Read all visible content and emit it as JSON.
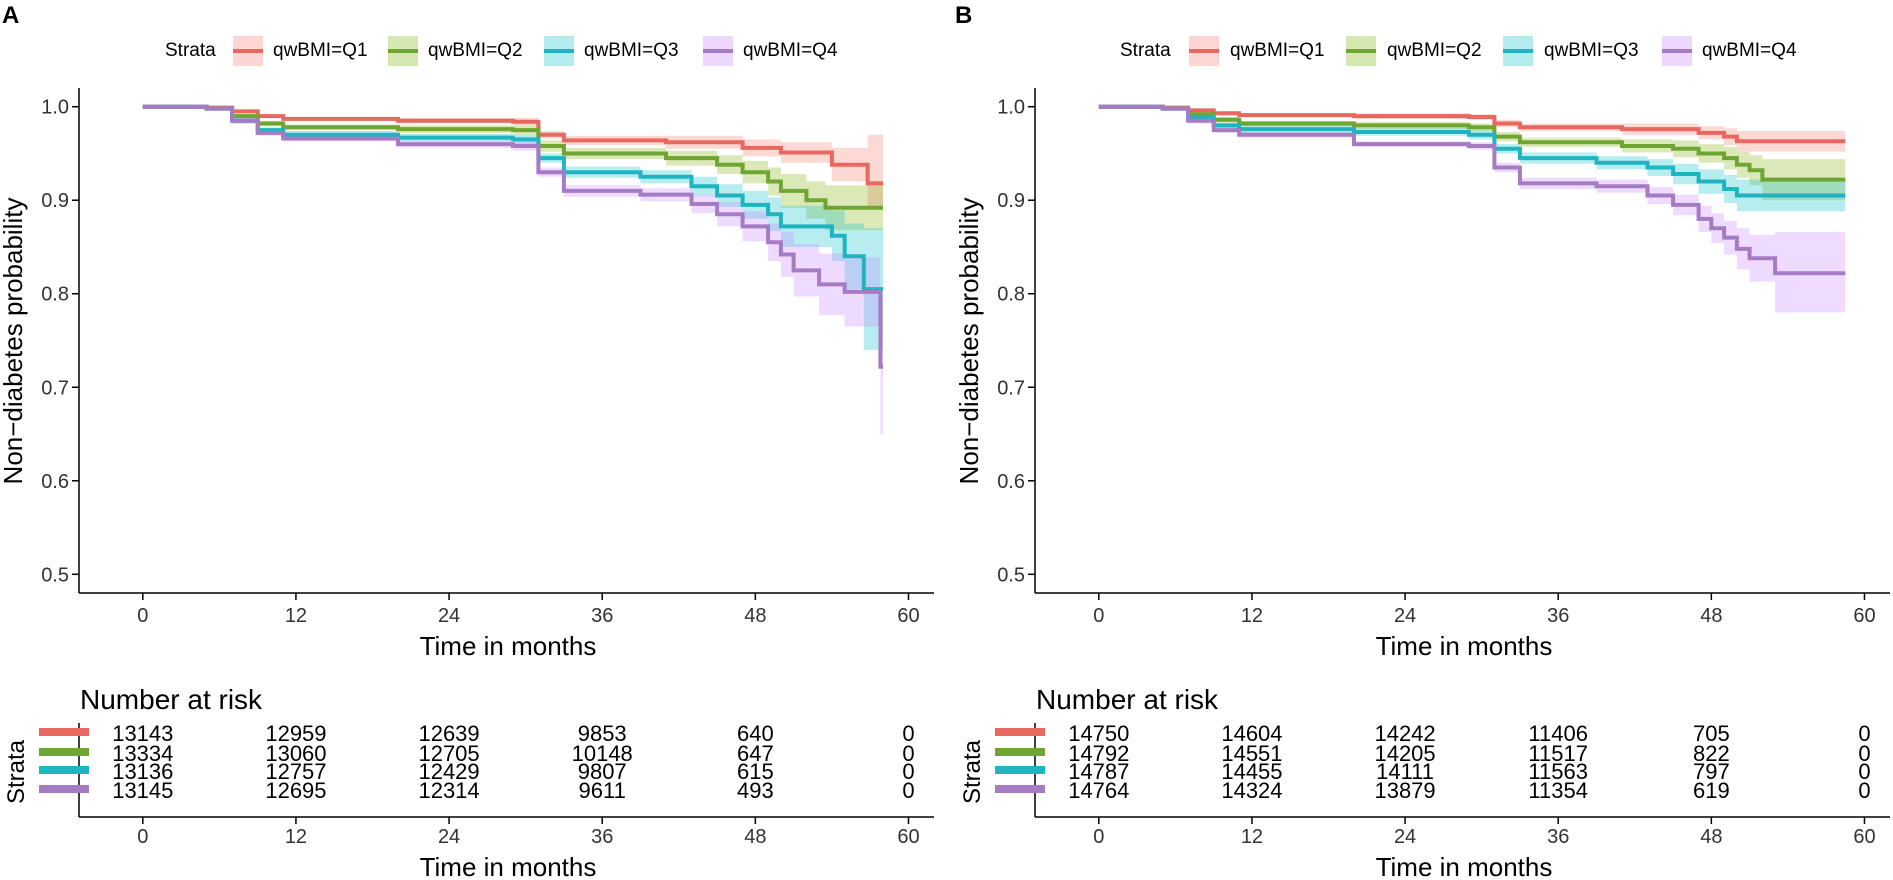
{
  "legend": {
    "title": "Strata",
    "entries": [
      "qwBMI=Q1",
      "qwBMI=Q2",
      "qwBMI=Q3",
      "qwBMI=Q4"
    ]
  },
  "colors": {
    "Q1": "#F8766D",
    "Q2": "#7CAE00",
    "Q3": "#00BFC4",
    "Q4": "#C77CFF",
    "Q1_line": "#E8685F",
    "Q2_line": "#6FA532",
    "Q3_line": "#1FB5C0",
    "Q4_line": "#A57CC4"
  },
  "risk_table": {
    "title": "Number at risk",
    "ylabel": "Strata",
    "xlabel": "Time in months"
  },
  "chart_data": [
    {
      "panel": "A",
      "type": "line",
      "xlabel": "Time in months",
      "ylabel": "Non−diabetes probability",
      "xlim": [
        -5,
        62
      ],
      "ylim": [
        0.48,
        1.02
      ],
      "xticks": [
        0,
        12,
        24,
        36,
        48,
        60
      ],
      "yticks": [
        0.5,
        0.6,
        0.7,
        0.8,
        0.9,
        1.0
      ],
      "ytick_labels": [
        "0.5",
        "0.6",
        "0.7",
        "0.8",
        "0.9",
        "1.0"
      ],
      "series": [
        {
          "name": "qwBMI=Q1",
          "x": [
            0,
            5,
            7,
            9,
            11,
            20,
            29,
            31,
            33,
            41,
            47,
            50,
            54,
            56.8,
            58
          ],
          "y": [
            1.0,
            0.999,
            0.995,
            0.99,
            0.987,
            0.985,
            0.984,
            0.97,
            0.964,
            0.962,
            0.956,
            0.951,
            0.938,
            0.918,
            0.918
          ],
          "lower": [
            1.0,
            0.999,
            0.994,
            0.988,
            0.985,
            0.982,
            0.98,
            0.966,
            0.959,
            0.955,
            0.947,
            0.94,
            0.92,
            0.89,
            0.89
          ],
          "upper": [
            1.0,
            1.0,
            0.997,
            0.992,
            0.989,
            0.988,
            0.988,
            0.974,
            0.969,
            0.969,
            0.965,
            0.962,
            0.956,
            0.97,
            0.97
          ]
        },
        {
          "name": "qwBMI=Q2",
          "x": [
            0,
            5,
            7,
            9,
            11,
            20,
            29,
            31,
            33,
            41,
            45,
            47,
            49,
            50,
            52,
            53.5,
            58
          ],
          "y": [
            1.0,
            0.998,
            0.99,
            0.982,
            0.978,
            0.976,
            0.975,
            0.958,
            0.95,
            0.945,
            0.938,
            0.93,
            0.92,
            0.91,
            0.9,
            0.892,
            0.892
          ],
          "lower": [
            1.0,
            0.997,
            0.988,
            0.979,
            0.975,
            0.972,
            0.97,
            0.952,
            0.944,
            0.937,
            0.928,
            0.918,
            0.905,
            0.892,
            0.88,
            0.868,
            0.868
          ],
          "upper": [
            1.0,
            0.999,
            0.992,
            0.985,
            0.981,
            0.98,
            0.98,
            0.964,
            0.956,
            0.953,
            0.948,
            0.942,
            0.935,
            0.928,
            0.92,
            0.916,
            0.916
          ]
        },
        {
          "name": "qwBMI=Q3",
          "x": [
            0,
            5,
            7,
            9,
            11,
            20,
            29,
            31,
            33,
            39,
            43,
            45,
            47,
            49,
            50,
            54,
            55,
            56.5,
            57.5,
            58
          ],
          "y": [
            1.0,
            0.998,
            0.985,
            0.975,
            0.97,
            0.967,
            0.965,
            0.945,
            0.93,
            0.925,
            0.915,
            0.905,
            0.895,
            0.885,
            0.872,
            0.862,
            0.84,
            0.805,
            0.805,
            0.805
          ],
          "lower": [
            1.0,
            0.997,
            0.982,
            0.972,
            0.966,
            0.963,
            0.96,
            0.94,
            0.924,
            0.918,
            0.905,
            0.893,
            0.88,
            0.867,
            0.85,
            0.835,
            0.805,
            0.74,
            0.74,
            0.74
          ],
          "upper": [
            1.0,
            0.999,
            0.988,
            0.978,
            0.974,
            0.971,
            0.97,
            0.95,
            0.936,
            0.932,
            0.925,
            0.917,
            0.91,
            0.903,
            0.894,
            0.889,
            0.875,
            0.87,
            0.87,
            0.87
          ]
        },
        {
          "name": "qwBMI=Q4",
          "x": [
            0,
            5,
            7,
            9,
            11,
            20,
            29,
            31,
            33,
            39,
            43,
            45,
            47,
            49,
            50,
            51,
            53,
            55,
            57,
            57.8,
            58
          ],
          "y": [
            1.0,
            0.998,
            0.985,
            0.972,
            0.966,
            0.96,
            0.958,
            0.93,
            0.91,
            0.906,
            0.896,
            0.885,
            0.872,
            0.855,
            0.842,
            0.825,
            0.81,
            0.802,
            0.802,
            0.722,
            0.722
          ],
          "lower": [
            1.0,
            0.997,
            0.982,
            0.969,
            0.963,
            0.956,
            0.953,
            0.925,
            0.904,
            0.899,
            0.886,
            0.872,
            0.856,
            0.835,
            0.818,
            0.797,
            0.777,
            0.765,
            0.765,
            0.65,
            0.65
          ],
          "upper": [
            1.0,
            0.999,
            0.988,
            0.975,
            0.969,
            0.964,
            0.963,
            0.935,
            0.916,
            0.913,
            0.906,
            0.898,
            0.888,
            0.875,
            0.866,
            0.853,
            0.843,
            0.839,
            0.839,
            0.794,
            0.794
          ]
        }
      ],
      "risk_table": {
        "times": [
          "0",
          "12",
          "24",
          "36",
          "48",
          "60"
        ],
        "rows": [
          [
            "13143",
            "12959",
            "12639",
            "9853",
            "640",
            "0"
          ],
          [
            "13334",
            "13060",
            "12705",
            "10148",
            "647",
            "0"
          ],
          [
            "13136",
            "12757",
            "12429",
            "9807",
            "615",
            "0"
          ],
          [
            "13145",
            "12695",
            "12314",
            "9611",
            "493",
            "0"
          ]
        ]
      }
    },
    {
      "panel": "B",
      "type": "line",
      "xlabel": "Time in months",
      "ylabel": "Non−diabetes probability",
      "xlim": [
        -5,
        62
      ],
      "ylim": [
        0.48,
        1.02
      ],
      "xticks": [
        0,
        12,
        24,
        36,
        48,
        60
      ],
      "yticks": [
        0.5,
        0.6,
        0.7,
        0.8,
        0.9,
        1.0
      ],
      "ytick_labels": [
        "0.5",
        "0.6",
        "0.7",
        "0.8",
        "0.9",
        "1.0"
      ],
      "series": [
        {
          "name": "qwBMI=Q1",
          "x": [
            0,
            5,
            7,
            9,
            11,
            20,
            29,
            31,
            33,
            41,
            47,
            49,
            50,
            58.5
          ],
          "y": [
            1.0,
            0.999,
            0.996,
            0.993,
            0.991,
            0.99,
            0.989,
            0.982,
            0.978,
            0.976,
            0.972,
            0.968,
            0.963,
            0.963
          ],
          "lower": [
            1.0,
            0.999,
            0.995,
            0.991,
            0.989,
            0.987,
            0.986,
            0.978,
            0.974,
            0.97,
            0.965,
            0.959,
            0.952,
            0.952
          ],
          "upper": [
            1.0,
            1.0,
            0.997,
            0.995,
            0.993,
            0.993,
            0.992,
            0.986,
            0.982,
            0.982,
            0.979,
            0.977,
            0.974,
            0.974
          ]
        },
        {
          "name": "qwBMI=Q2",
          "x": [
            0,
            5,
            7,
            9,
            11,
            20,
            29,
            31,
            33,
            41,
            45,
            47,
            49,
            50,
            51,
            52,
            58.5
          ],
          "y": [
            1.0,
            0.998,
            0.992,
            0.986,
            0.982,
            0.98,
            0.978,
            0.968,
            0.962,
            0.958,
            0.955,
            0.95,
            0.945,
            0.938,
            0.932,
            0.922,
            0.922
          ],
          "lower": [
            1.0,
            0.997,
            0.99,
            0.983,
            0.979,
            0.976,
            0.974,
            0.963,
            0.957,
            0.951,
            0.946,
            0.94,
            0.933,
            0.924,
            0.916,
            0.9,
            0.9
          ],
          "upper": [
            1.0,
            0.999,
            0.994,
            0.989,
            0.985,
            0.984,
            0.982,
            0.973,
            0.967,
            0.965,
            0.964,
            0.96,
            0.957,
            0.952,
            0.948,
            0.944,
            0.944
          ]
        },
        {
          "name": "qwBMI=Q3",
          "x": [
            0,
            5,
            7,
            9,
            11,
            20,
            29,
            31,
            33,
            39,
            43,
            45,
            47,
            49,
            50,
            58.5
          ],
          "y": [
            1.0,
            0.998,
            0.988,
            0.98,
            0.976,
            0.973,
            0.97,
            0.955,
            0.945,
            0.94,
            0.935,
            0.928,
            0.92,
            0.912,
            0.905,
            0.905
          ],
          "lower": [
            1.0,
            0.997,
            0.985,
            0.977,
            0.972,
            0.969,
            0.965,
            0.95,
            0.939,
            0.933,
            0.926,
            0.917,
            0.907,
            0.897,
            0.888,
            0.888
          ],
          "upper": [
            1.0,
            0.999,
            0.991,
            0.983,
            0.98,
            0.977,
            0.975,
            0.96,
            0.951,
            0.947,
            0.944,
            0.939,
            0.933,
            0.927,
            0.922,
            0.922
          ]
        },
        {
          "name": "qwBMI=Q4",
          "x": [
            0,
            5,
            7,
            9,
            11,
            20,
            29,
            31,
            33,
            39,
            43,
            45,
            47,
            48,
            49,
            50,
            51,
            53,
            58.5
          ],
          "y": [
            1.0,
            0.998,
            0.985,
            0.975,
            0.97,
            0.96,
            0.958,
            0.935,
            0.918,
            0.915,
            0.905,
            0.895,
            0.88,
            0.87,
            0.86,
            0.848,
            0.838,
            0.822,
            0.822
          ],
          "lower": [
            1.0,
            0.997,
            0.982,
            0.972,
            0.967,
            0.957,
            0.954,
            0.93,
            0.912,
            0.908,
            0.896,
            0.884,
            0.866,
            0.854,
            0.842,
            0.826,
            0.813,
            0.78,
            0.78
          ],
          "upper": [
            1.0,
            0.999,
            0.988,
            0.978,
            0.973,
            0.963,
            0.962,
            0.94,
            0.924,
            0.922,
            0.914,
            0.906,
            0.894,
            0.886,
            0.878,
            0.87,
            0.863,
            0.866,
            0.866
          ]
        }
      ],
      "risk_table": {
        "times": [
          "0",
          "12",
          "24",
          "36",
          "48",
          "60"
        ],
        "rows": [
          [
            "14750",
            "14604",
            "14242",
            "11406",
            "705",
            "0"
          ],
          [
            "14792",
            "14551",
            "14205",
            "11517",
            "822",
            "0"
          ],
          [
            "14787",
            "14455",
            "14111",
            "11563",
            "797",
            "0"
          ],
          [
            "14764",
            "14324",
            "13879",
            "11354",
            "619",
            "0"
          ]
        ]
      }
    }
  ]
}
